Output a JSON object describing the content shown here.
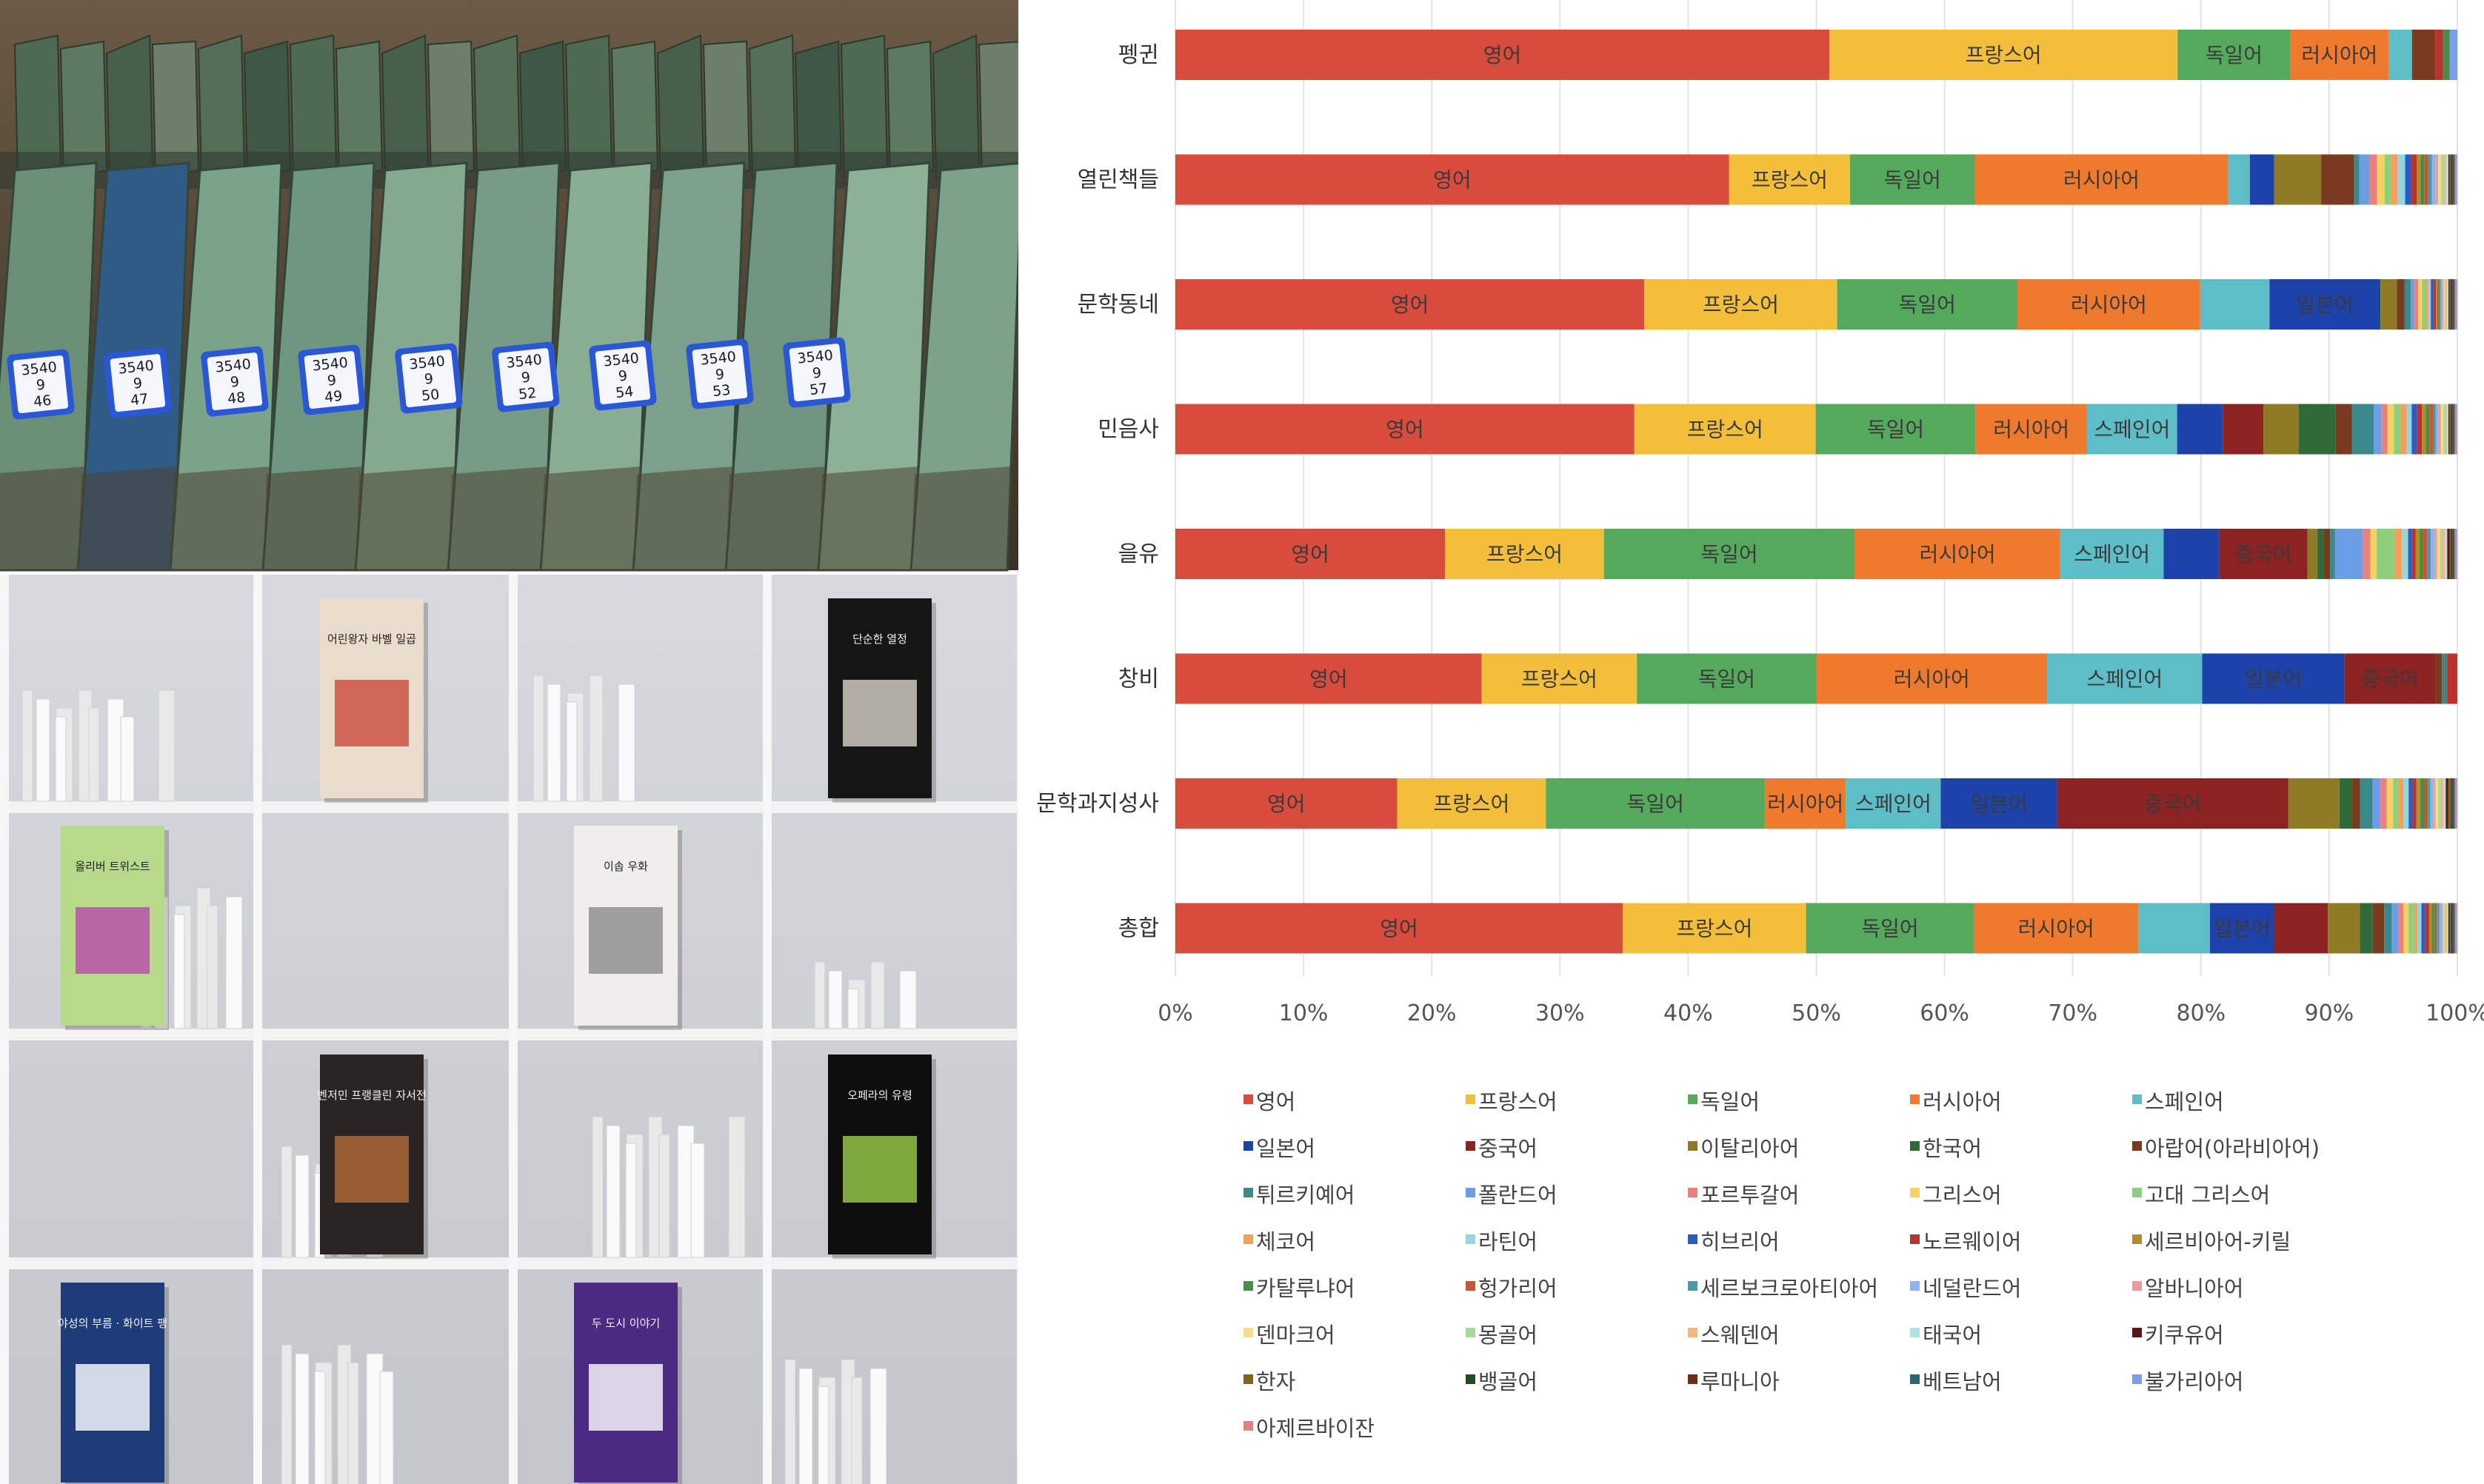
{
  "chart_data": {
    "type": "bar",
    "orientation": "horizontal",
    "stacked": true,
    "normalized": true,
    "title": "",
    "xlabel": "",
    "ylabel": "",
    "xlim": [
      0,
      100
    ],
    "x_ticks": [
      "0%",
      "10%",
      "20%",
      "30%",
      "40%",
      "50%",
      "60%",
      "70%",
      "80%",
      "90%",
      "100%"
    ],
    "grid": "vertical",
    "legend_position": "bottom",
    "categories": [
      "펭귄",
      "열린책들",
      "문학동네",
      "민음사",
      "을유",
      "창비",
      "문학과지성사",
      "총합"
    ],
    "series": [
      {
        "name": "영어",
        "color": "#d94c3d",
        "values": [
          50.5,
          43.5,
          37.2,
          36.2,
          21.4,
          23.9,
          17.3,
          34.9
        ]
      },
      {
        "name": "프랑스어",
        "color": "#f3bf3a",
        "values": [
          26.9,
          9.5,
          15.3,
          14.3,
          12.6,
          12.1,
          11.6,
          14.3
        ]
      },
      {
        "name": "독일어",
        "color": "#55a95c",
        "values": [
          8.7,
          9.8,
          14.3,
          12.6,
          19.9,
          14.0,
          17.1,
          13.1
        ]
      },
      {
        "name": "러시아어",
        "color": "#ef7a2e",
        "values": [
          7.6,
          19.9,
          14.5,
          8.8,
          16.3,
          18.0,
          6.3,
          12.8
        ]
      },
      {
        "name": "스페인어",
        "color": "#5dbec7",
        "values": [
          1.8,
          1.7,
          5.5,
          7.1,
          8.2,
          12.1,
          7.4,
          5.6
        ]
      },
      {
        "name": "일본어",
        "color": "#1d43ab",
        "values": [
          0,
          1.9,
          8.8,
          3.6,
          4.4,
          11.1,
          9.1,
          5.0
        ]
      },
      {
        "name": "중국어",
        "color": "#8c2323",
        "values": [
          0,
          0,
          0,
          3.2,
          7.0,
          7.1,
          18.0,
          4.2
        ]
      },
      {
        "name": "이탈리아어",
        "color": "#8f7a26",
        "values": [
          0,
          3.7,
          1.3,
          2.8,
          0.8,
          0,
          4.0,
          2.5
        ]
      },
      {
        "name": "한국어",
        "color": "#2e6b39",
        "values": [
          0,
          0,
          0,
          2.9,
          0.5,
          0,
          1.0,
          1.0
        ]
      },
      {
        "name": "아랍어(아라비아어)",
        "color": "#7a3a20",
        "values": [
          1.8,
          2.6,
          0.6,
          1.3,
          0.5,
          0.5,
          0.6,
          0.9
        ]
      },
      {
        "name": "튀르키예어",
        "color": "#3a8a8a",
        "values": [
          0,
          0.4,
          0.5,
          1.7,
          0.4,
          0.4,
          1.0,
          0.6
        ]
      },
      {
        "name": "폴란드어",
        "color": "#6a9ee6",
        "values": [
          0,
          0.8,
          0.3,
          0.6,
          2.2,
          0,
          0.6,
          0.5
        ]
      },
      {
        "name": "포르투갈어",
        "color": "#e98080",
        "values": [
          0,
          0.6,
          0.3,
          0.5,
          0.6,
          0,
          0.5,
          0.4
        ]
      },
      {
        "name": "그리스어",
        "color": "#f6d260",
        "values": [
          0,
          0.6,
          0.3,
          0.5,
          0.5,
          0,
          0.5,
          0.4
        ]
      },
      {
        "name": "고대 그리스어",
        "color": "#8ecf7e",
        "values": [
          0,
          0.5,
          0.3,
          0.5,
          1.4,
          0,
          0.4,
          0.4
        ]
      },
      {
        "name": "체코어",
        "color": "#f2a15d",
        "values": [
          0,
          0.5,
          0.2,
          0.5,
          0.6,
          0,
          0.4,
          0.3
        ]
      },
      {
        "name": "라틴어",
        "color": "#94d6dc",
        "values": [
          0,
          0.6,
          0.2,
          0.4,
          0.5,
          0,
          0.4,
          0.3
        ]
      },
      {
        "name": "히브리어",
        "color": "#2b5cc4",
        "values": [
          0,
          0.5,
          0.2,
          0.4,
          0.3,
          0,
          0.3,
          0.3
        ]
      },
      {
        "name": "노르웨이어",
        "color": "#b8322e",
        "values": [
          0.6,
          0.4,
          0.2,
          0.4,
          0.3,
          0.8,
          0.3,
          0.3
        ]
      },
      {
        "name": "세르비아어-키릴",
        "color": "#b08c2a",
        "values": [
          0,
          0.3,
          0.1,
          0.3,
          0.3,
          0,
          0.3,
          0.2
        ]
      },
      {
        "name": "카탈루냐어",
        "color": "#4b8c4b",
        "values": [
          0.5,
          0.3,
          0.1,
          0.3,
          0.3,
          0,
          0.3,
          0.2
        ]
      },
      {
        "name": "헝가리어",
        "color": "#c9572e",
        "values": [
          0,
          0.3,
          0.1,
          0.3,
          0.3,
          0,
          0.3,
          0.2
        ]
      },
      {
        "name": "세르보크로아티아어",
        "color": "#4a9ba3",
        "values": [
          0,
          0.3,
          0.1,
          0.2,
          0.3,
          0,
          0.2,
          0.2
        ]
      },
      {
        "name": "네덜란드어",
        "color": "#8fb3f0",
        "values": [
          0,
          0.3,
          0.1,
          0.2,
          0.3,
          0,
          0.2,
          0.2
        ]
      },
      {
        "name": "알바니아어",
        "color": "#ee9a9a",
        "values": [
          0,
          0.2,
          0.1,
          0.2,
          0.2,
          0,
          0.2,
          0.1
        ]
      },
      {
        "name": "덴마크어",
        "color": "#f8dc88",
        "values": [
          0,
          0.2,
          0.1,
          0.2,
          0.2,
          0,
          0.2,
          0.1
        ]
      },
      {
        "name": "몽골어",
        "color": "#a6dc98",
        "values": [
          0,
          0.2,
          0.1,
          0.2,
          0.2,
          0,
          0.2,
          0.1
        ]
      },
      {
        "name": "스웨덴어",
        "color": "#f5b57e",
        "values": [
          0,
          0.2,
          0.1,
          0.1,
          0.2,
          0,
          0.2,
          0.1
        ]
      },
      {
        "name": "태국어",
        "color": "#afe2e6",
        "values": [
          0,
          0.2,
          0.1,
          0.1,
          0.2,
          0,
          0.2,
          0.1
        ]
      },
      {
        "name": "키쿠유어",
        "color": "#5a1515",
        "values": [
          0,
          0.1,
          0.1,
          0.1,
          0.2,
          0,
          0.2,
          0.1
        ]
      },
      {
        "name": "한자",
        "color": "#7a6420",
        "values": [
          0,
          0.1,
          0.1,
          0.1,
          0.1,
          0,
          0.2,
          0.1
        ]
      },
      {
        "name": "뱅골어",
        "color": "#1f4d27",
        "values": [
          0,
          0.1,
          0.1,
          0.1,
          0.1,
          0,
          0.1,
          0.1
        ]
      },
      {
        "name": "루마니아",
        "color": "#6e2c15",
        "values": [
          0,
          0.1,
          0.1,
          0.1,
          0.1,
          0,
          0.1,
          0.1
        ]
      },
      {
        "name": "베트남어",
        "color": "#2a6670",
        "values": [
          0,
          0.1,
          0.1,
          0.1,
          0.1,
          0,
          0.1,
          0.1
        ]
      },
      {
        "name": "불가리아어",
        "color": "#7a9ee8",
        "values": [
          0.6,
          0.1,
          0.1,
          0.1,
          0.1,
          0,
          0.1,
          0.1
        ]
      },
      {
        "name": "아제르바이잔",
        "color": "#e87d7d",
        "values": [
          0,
          0.1,
          0.1,
          0.1,
          0.1,
          0,
          0.1,
          0.1
        ]
      }
    ]
  },
  "photo_panel": {
    "spine_labels": [
      {
        "line1": "3540",
        "line2": "9",
        "line3": "46"
      },
      {
        "line1": "3540",
        "line2": "9",
        "line3": "47"
      },
      {
        "line1": "3540",
        "line2": "9",
        "line3": "48"
      },
      {
        "line1": "3540",
        "line2": "9",
        "line3": "49"
      },
      {
        "line1": "3540",
        "line2": "9",
        "line3": "50"
      },
      {
        "line1": "3540",
        "line2": "9",
        "line3": "52"
      },
      {
        "line1": "3540",
        "line2": "9",
        "line3": "54"
      },
      {
        "line1": "3540",
        "line2": "9",
        "line3": "53"
      },
      {
        "line1": "3540",
        "line2": "9",
        "line3": "57"
      }
    ],
    "book_covers": [
      {
        "title": "어린왕자 바벨 일곱",
        "color": "#e9dccb",
        "accent": "#c94a3a"
      },
      {
        "title": "단순한 열정",
        "color": "#151515",
        "accent": "#d8d2c8"
      },
      {
        "title": "올리버 트위스트",
        "color": "#b7d98a",
        "accent": "#b84aa8"
      },
      {
        "title": "이솝 우화",
        "color": "#efeeea",
        "accent": "#8a8a8a"
      },
      {
        "title": "벤저민 프랭클린 자서전",
        "color": "#2a2422",
        "accent": "#b36a3a"
      },
      {
        "title": "오페라의 유령",
        "color": "#0e0e0e",
        "accent": "#9bd04a"
      },
      {
        "title": "야성의 부름 · 화이트 팽",
        "color": "#1f3c7a",
        "accent": "#ffffff"
      },
      {
        "title": "두 도시 이야기",
        "color": "#4a2a82",
        "accent": "#ffffff"
      }
    ]
  }
}
